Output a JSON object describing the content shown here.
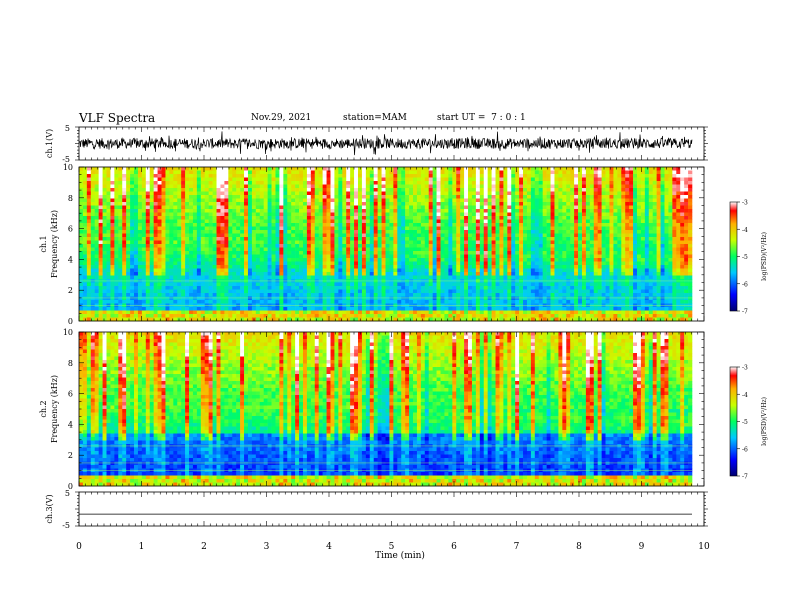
{
  "header": {
    "title": "VLF Spectra",
    "date": "Nov.29, 2021",
    "station": "station=MAM",
    "start": "start UT =  7 : 0 : 1"
  },
  "chart_data": [
    {
      "type": "line",
      "name": "ch1-waveform",
      "ylabel": "ch.1(V)",
      "ylim": [
        -5,
        5
      ],
      "yticks": [
        "5",
        "-5"
      ],
      "xlim": [
        0,
        10
      ],
      "description_level": "dense noisy waveform ≈ ±2 V"
    },
    {
      "type": "heatmap",
      "name": "ch1-spectrogram",
      "ylabel": "ch.1 Frequency (kHz)",
      "ylabel_top": "ch.1",
      "ylabel_bottom": "Frequency (kHz)",
      "ylim": [
        0,
        10
      ],
      "yticks": [
        "0",
        "2",
        "4",
        "6",
        "8",
        "10"
      ],
      "xlim": [
        0,
        9.8
      ],
      "colorbar": {
        "label": "log(PSD)(V²/Hz)",
        "range": [
          -7,
          -3
        ],
        "ticks": [
          "-3",
          "-4",
          "-5",
          "-6",
          "-7"
        ]
      }
    },
    {
      "type": "heatmap",
      "name": "ch2-spectrogram",
      "ylabel": "ch.2 Frequency (kHz)",
      "ylabel_top": "ch.2",
      "ylabel_bottom": "Frequency (kHz)",
      "ylim": [
        0,
        10
      ],
      "yticks": [
        "0",
        "2",
        "4",
        "6",
        "8",
        "10"
      ],
      "xlim": [
        0,
        9.8
      ],
      "colorbar": {
        "label": "log(PSD)(V²/Hz)",
        "range": [
          -7,
          -3
        ],
        "ticks": [
          "-3",
          "-4",
          "-5",
          "-6",
          "-7"
        ]
      }
    },
    {
      "type": "line",
      "name": "ch3-waveform",
      "ylabel": "ch.3(V)",
      "ylim": [
        -5,
        5
      ],
      "yticks": [
        "5",
        "-5"
      ],
      "xlim": [
        0,
        10
      ],
      "values_constant": -1.5
    }
  ],
  "xaxis": {
    "label": "Time (min)",
    "ticks": [
      "0",
      "1",
      "2",
      "3",
      "4",
      "5",
      "6",
      "7",
      "8",
      "9",
      "10"
    ]
  },
  "colors": {
    "low": "#00008b",
    "mid": "#00ff00",
    "high": "#ff0000"
  }
}
